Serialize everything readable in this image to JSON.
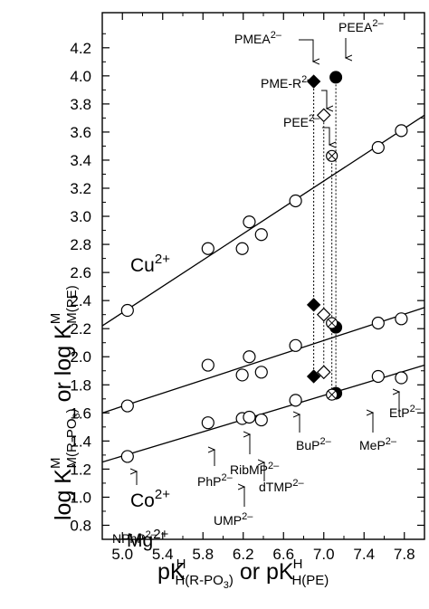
{
  "chart_data": {
    "type": "scatter",
    "xlim": [
      4.8,
      8.0
    ],
    "ylim": [
      0.7,
      4.45
    ],
    "x_ticks": [
      "5.0",
      "5.4",
      "5.8",
      "6.2",
      "6.6",
      "7.0",
      "7.4",
      "7.8"
    ],
    "y_ticks": [
      "0.8",
      "1.0",
      "1.2",
      "1.4",
      "1.6",
      "1.8",
      "2.0",
      "2.2",
      "2.4",
      "2.6",
      "2.8",
      "3.0",
      "3.2",
      "3.4",
      "3.6",
      "3.8",
      "4.0",
      "4.2"
    ],
    "x_label": {
      "base": "pK",
      "sup": "H",
      "sub": "H(R-PO",
      "sub3": "3",
      "close": ")",
      "or": " or p",
      "k2": "K",
      "sup2": "H",
      "sub2": "H(PE)"
    },
    "y_label": {
      "a": "log ",
      "k1": "K",
      "sup1": "M",
      "sub1": "M(R-PO",
      "sub1b": "3",
      "close": ")",
      "or": " or log ",
      "k2": "K",
      "sup2": "M",
      "sub2": "M(PE)"
    },
    "grid": false,
    "series": [
      {
        "name": "Cu2+",
        "label": {
          "main": "Cu",
          "sup": "2+"
        },
        "line": {
          "x": [
            4.8,
            8.0
          ],
          "y": [
            2.22,
            3.72
          ]
        },
        "points": [
          {
            "x": 5.05,
            "y": 2.33
          },
          {
            "x": 5.85,
            "y": 2.77
          },
          {
            "x": 6.19,
            "y": 2.77
          },
          {
            "x": 6.26,
            "y": 2.96
          },
          {
            "x": 6.38,
            "y": 2.87
          },
          {
            "x": 6.72,
            "y": 3.11
          },
          {
            "x": 7.54,
            "y": 3.49
          },
          {
            "x": 7.77,
            "y": 3.61
          }
        ],
        "special": [
          {
            "marker": "filled-diamond",
            "x": 6.9,
            "y": 3.96
          },
          {
            "marker": "filled-circle",
            "x": 7.12,
            "y": 3.99
          },
          {
            "marker": "open-diamond",
            "x": 7.0,
            "y": 3.72
          },
          {
            "marker": "crossed-circle",
            "x": 7.08,
            "y": 3.43
          }
        ]
      },
      {
        "name": "Co2+",
        "label": {
          "main": "Co",
          "sup": "2+"
        },
        "line": {
          "x": [
            4.8,
            8.0
          ],
          "y": [
            1.6,
            2.35
          ]
        },
        "points": [
          {
            "x": 5.05,
            "y": 1.65
          },
          {
            "x": 5.85,
            "y": 1.94
          },
          {
            "x": 6.19,
            "y": 1.87
          },
          {
            "x": 6.26,
            "y": 2.0
          },
          {
            "x": 6.38,
            "y": 1.89
          },
          {
            "x": 6.72,
            "y": 2.08
          },
          {
            "x": 7.54,
            "y": 2.24
          },
          {
            "x": 7.77,
            "y": 2.27
          }
        ],
        "special": [
          {
            "marker": "filled-diamond",
            "x": 6.9,
            "y": 2.37
          },
          {
            "marker": "filled-circle",
            "x": 7.12,
            "y": 2.21
          },
          {
            "marker": "open-diamond",
            "x": 7.0,
            "y": 2.3
          },
          {
            "marker": "crossed-circle",
            "x": 7.08,
            "y": 2.24
          }
        ]
      },
      {
        "name": "Mg2+",
        "label": {
          "main": "Mg",
          "sup": "2+"
        },
        "line": {
          "x": [
            4.8,
            8.0
          ],
          "y": [
            1.25,
            1.94
          ]
        },
        "points": [
          {
            "x": 5.05,
            "y": 1.29
          },
          {
            "x": 5.85,
            "y": 1.53
          },
          {
            "x": 6.19,
            "y": 1.56
          },
          {
            "x": 6.26,
            "y": 1.57
          },
          {
            "x": 6.38,
            "y": 1.55
          },
          {
            "x": 6.72,
            "y": 1.69
          },
          {
            "x": 7.54,
            "y": 1.86
          },
          {
            "x": 7.77,
            "y": 1.85
          }
        ],
        "special": [
          {
            "marker": "filled-diamond",
            "x": 6.9,
            "y": 1.86
          },
          {
            "marker": "filled-circle",
            "x": 7.12,
            "y": 1.74
          },
          {
            "marker": "open-diamond",
            "x": 7.0,
            "y": 1.89
          },
          {
            "marker": "crossed-circle",
            "x": 7.08,
            "y": 1.73
          }
        ]
      }
    ],
    "legend_labels": [
      {
        "main": "PMEA",
        "sup": "2–"
      },
      {
        "main": "PEEA",
        "sup": "2–"
      },
      {
        "main": "PME-R",
        "sup": "2–"
      },
      {
        "main": "PEE",
        "sup": "2–"
      }
    ],
    "compound_labels": [
      {
        "main": "NPhP",
        "sup": "2–"
      },
      {
        "main": "PhP",
        "sup": "2–"
      },
      {
        "main": "UMP",
        "sup": "2–"
      },
      {
        "main": "RibMP",
        "sup": "2–"
      },
      {
        "main": "dTMP",
        "sup": "2–"
      },
      {
        "main": "BuP",
        "sup": "2–"
      },
      {
        "main": "MeP",
        "sup": "2–"
      },
      {
        "main": "EtP",
        "sup": "2–"
      }
    ]
  }
}
